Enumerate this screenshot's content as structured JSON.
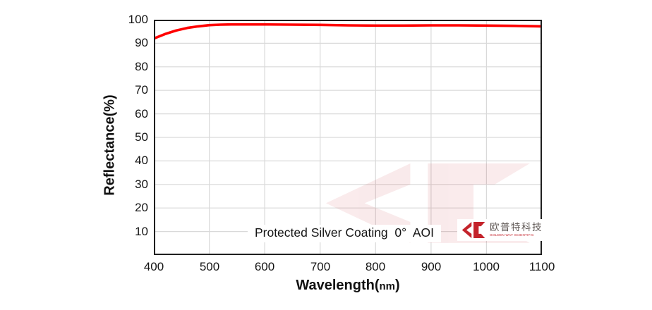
{
  "figure": {
    "annotation": "Protected Silver Coating  0°  AOI",
    "x_axis": {
      "title_full": "Wavelength(nm)",
      "title_prefix": "Wavelength(",
      "title_unit": "nm",
      "title_suffix": ")"
    },
    "y_axis": {
      "title": "Reflectance(%)"
    }
  },
  "logo": {
    "glyph": "golden-way-double-arrow",
    "cn_name": "欧普特科技",
    "en_name": "GOLDEN WAY SCIENTIFIC"
  },
  "colors": {
    "series_red": "#ff0000",
    "logo_red": "#c4232b",
    "grid": "#d9d9d9",
    "axis_frame": "#1f1f1f",
    "text": "#141414",
    "background": "#ffffff"
  },
  "chart_data": {
    "type": "line",
    "title": "",
    "xlabel": "Wavelength(nm)",
    "ylabel": "Reflectance(%)",
    "xlim": [
      400,
      1100
    ],
    "ylim": [
      0,
      100
    ],
    "x_ticks": [
      400,
      500,
      600,
      700,
      800,
      900,
      1000,
      1100
    ],
    "y_ticks": [
      10,
      20,
      30,
      40,
      50,
      60,
      70,
      80,
      90,
      100
    ],
    "grid": true,
    "legend_position": "none",
    "annotation": "Protected Silver Coating  0°  AOI",
    "series": [
      {
        "name": "Protected Silver Coating 0° AOI",
        "color": "#ff0000",
        "x": [
          400,
          420,
          440,
          460,
          480,
          500,
          520,
          540,
          560,
          580,
          600,
          650,
          700,
          750,
          800,
          850,
          900,
          950,
          1000,
          1050,
          1100
        ],
        "y": [
          92.0,
          93.9,
          95.4,
          96.5,
          97.2,
          97.7,
          97.9,
          98.0,
          98.0,
          98.0,
          98.0,
          97.9,
          97.8,
          97.6,
          97.5,
          97.5,
          97.6,
          97.6,
          97.5,
          97.4,
          97.2
        ]
      }
    ]
  }
}
